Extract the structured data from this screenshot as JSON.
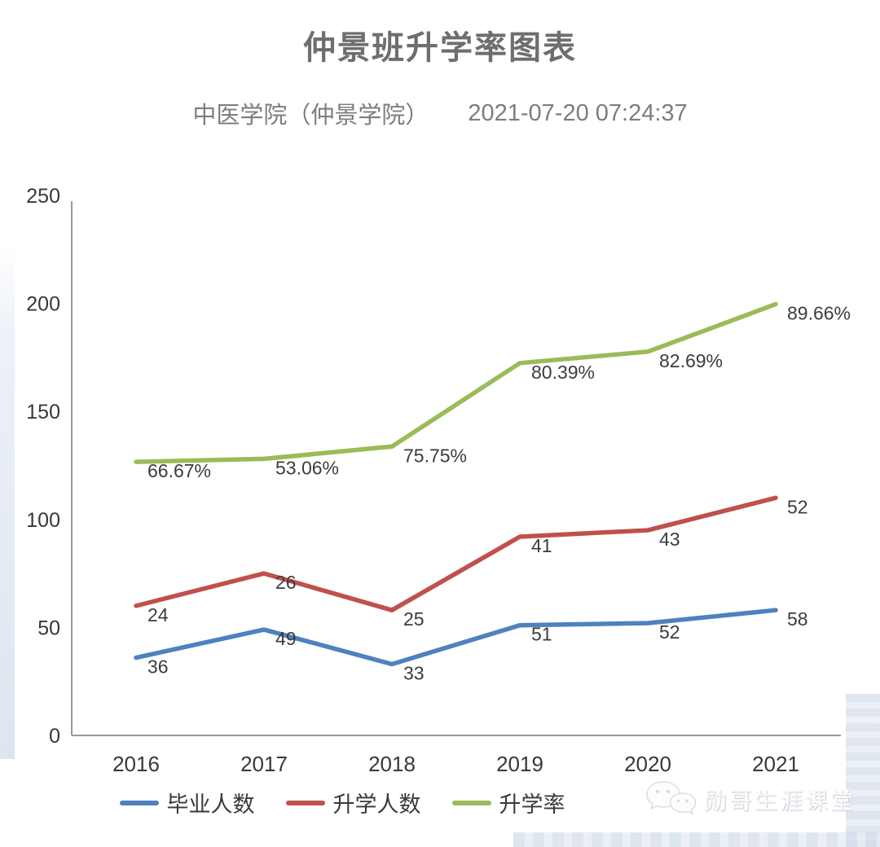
{
  "header": {
    "title": "仲景班升学率图表",
    "org": "中医学院（仲景学院）",
    "timestamp": "2021-07-20 07:24:37"
  },
  "chart_data": {
    "type": "line",
    "stacked": true,
    "title": "仲景班升学率图表",
    "x": [
      "2016",
      "2017",
      "2018",
      "2019",
      "2020",
      "2021"
    ],
    "series": [
      {
        "name": "毕业人数",
        "color": "#4F81BD",
        "values": [
          36,
          49,
          33,
          51,
          52,
          58
        ],
        "labels": [
          "36",
          "49",
          "33",
          "51",
          "52",
          "58"
        ]
      },
      {
        "name": "升学人数",
        "color": "#C0504D",
        "values": [
          24,
          26,
          25,
          41,
          43,
          52
        ],
        "labels": [
          "24",
          "26",
          "25",
          "41",
          "43",
          "52"
        ]
      },
      {
        "name": "升学率",
        "color": "#9BBB59",
        "values": [
          66.67,
          53.06,
          75.75,
          80.39,
          82.69,
          89.66
        ],
        "labels": [
          "66.67%",
          "53.06%",
          "75.75%",
          "80.39%",
          "82.69%",
          "89.66%"
        ]
      }
    ],
    "ylim": [
      0,
      250
    ],
    "yticks": [
      0,
      50,
      100,
      150,
      200,
      250
    ],
    "grid": false,
    "legend_position": "bottom",
    "axis_color": "#9a9a9a",
    "tick_color": "#383838",
    "label_color": "#3c3c3c",
    "plot_note": "stacked line chart: each series is plotted cumulatively on the 0-250 axis"
  },
  "watermark": {
    "text": "勋哥生涯课堂",
    "icon": "wechat-icon"
  }
}
